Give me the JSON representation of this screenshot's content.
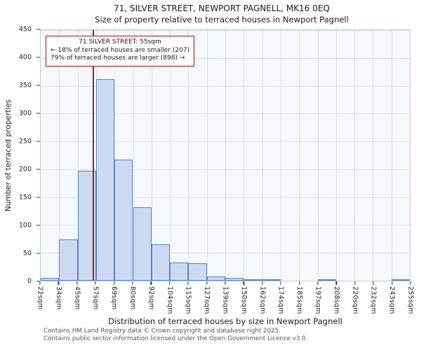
{
  "title": "71, SILVER STREET, NEWPORT PAGNELL, MK16 0EQ",
  "subtitle": "Size of property relative to terraced houses in Newport Pagnell",
  "annotation": {
    "line1": "71 SILVER STREET: 55sqm",
    "line2": "← 18% of terraced houses are smaller (207)",
    "line3": "79% of terraced houses are larger (898) →"
  },
  "footer": {
    "line1": "Contains HM Land Registry data © Crown copyright and database right 2025.",
    "line2": "Contains public sector information licensed under the Open Government Licence v3.0."
  },
  "chart_data": {
    "type": "bar",
    "title": "71, SILVER STREET, NEWPORT PAGNELL, MK16 0EQ",
    "subtitle": "Size of property relative to terraced houses in Newport Pagnell",
    "xlabel": "Distribution of terraced houses by size in Newport Pagnell",
    "ylabel": "Number of terraced properties",
    "ylim": [
      0,
      450
    ],
    "ytick_step": 50,
    "grid": true,
    "legend": false,
    "tick_labels": [
      "22sqm",
      "34sqm",
      "45sqm",
      "57sqm",
      "69sqm",
      "80sqm",
      "92sqm",
      "104sqm",
      "115sqm",
      "127sqm",
      "139sqm",
      "150sqm",
      "162sqm",
      "174sqm",
      "185sqm",
      "197sqm",
      "208sqm",
      "220sqm",
      "232sqm",
      "243sqm",
      "255sqm"
    ],
    "bin_edges": [
      22,
      34,
      45,
      57,
      69,
      80,
      92,
      104,
      115,
      127,
      139,
      150,
      162,
      174,
      185,
      197,
      208,
      220,
      232,
      243,
      255
    ],
    "values": [
      5,
      74,
      197,
      362,
      218,
      132,
      66,
      33,
      31,
      8,
      5,
      2,
      2,
      0,
      0,
      1,
      0,
      0,
      0,
      2
    ],
    "marker_value": 55,
    "marker_label": "55sqm",
    "colors": {
      "bar_fill": "#ccdaf1",
      "bar_border": "#5585c7",
      "marker_line": "#b01c1c",
      "annotation_border": "#cc0000",
      "grid_line": "#dadfe9"
    }
  }
}
